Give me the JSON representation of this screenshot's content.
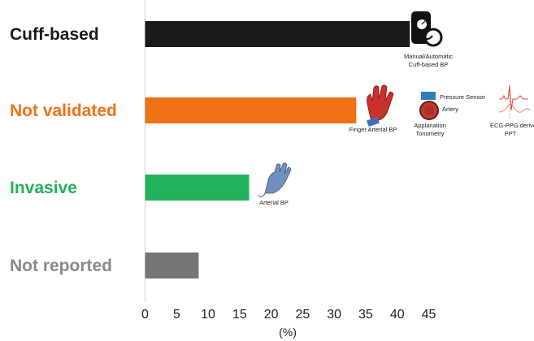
{
  "chart_data": {
    "type": "bar",
    "orientation": "horizontal",
    "categories": [
      "Cuff-based",
      "Not validated",
      "Invasive",
      "Not reported"
    ],
    "values": [
      42,
      33.5,
      16.5,
      8.5
    ],
    "colors": [
      "#1a1a1a",
      "#f07114",
      "#21b35b",
      "#767676"
    ],
    "label_colors": [
      "#1a1a1a",
      "#f07114",
      "#21b35b",
      "#8a8a8a"
    ],
    "xlim": [
      0,
      45
    ],
    "xticks": [
      "0",
      "5",
      "10",
      "15",
      "20",
      "25",
      "30",
      "35",
      "40",
      "45"
    ],
    "xlabel": "(%)",
    "grid": false,
    "annotations": {
      "cuff": {
        "line1": "Manual/Automatic",
        "line2": "Cuff-based BP",
        "icon": "blood-pressure-monitor-icon"
      },
      "finger": {
        "line1": "Finger Arterial BP",
        "icon": "finger-cuff-hand-icon"
      },
      "tonometry": {
        "line1": "Applanation",
        "line2": "Tonometry",
        "sensor": "Pressure Sensor",
        "artery": "Artery",
        "icon": "applanation-tonometry-icon"
      },
      "ecg": {
        "line1": "ECG-PPG derive",
        "line2": "PPT",
        "icon": "ecg-ppg-waveform-icon"
      },
      "arterial": {
        "line1": "Arterial BP",
        "icon": "arterial-line-hand-icon"
      }
    }
  }
}
